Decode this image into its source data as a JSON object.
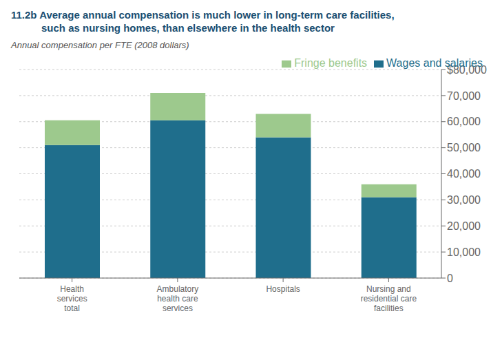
{
  "chart_data": {
    "type": "bar",
    "title": "11.2b Average annual compensation is much lower in long-term care facilities,\nsuch as nursing homes, than elsewhere in the health sector",
    "subtitle": "Annual compensation per FTE (2008 dollars)",
    "categories": [
      "Health\nservices\ntotal",
      "Ambulatory\nhealth care\nservices",
      "Hospitals",
      "Nursing and\nresidential care\nfacilities"
    ],
    "series": [
      {
        "name": "Wages and salaries",
        "color": "#1f6e8c",
        "values": [
          51000,
          60500,
          54000,
          31000
        ]
      },
      {
        "name": "Fringe benefits",
        "color": "#9dc98d",
        "values": [
          9500,
          10500,
          9000,
          5000
        ]
      }
    ],
    "stacked": true,
    "ylim": [
      0,
      80000
    ],
    "yticks": [
      0,
      {
        "value": 10000,
        "label": "10,000"
      },
      {
        "value": 20000,
        "label": "20,000"
      },
      {
        "value": 30000,
        "label": "30,000"
      },
      {
        "value": 40000,
        "label": "40,000"
      },
      {
        "value": 50000,
        "label": "50,000"
      },
      {
        "value": 60000,
        "label": "60,000"
      },
      {
        "value": 70000,
        "label": "70,000"
      },
      {
        "value": 80000,
        "label": "$80,000"
      }
    ],
    "grid": true,
    "legend": "upper right"
  }
}
